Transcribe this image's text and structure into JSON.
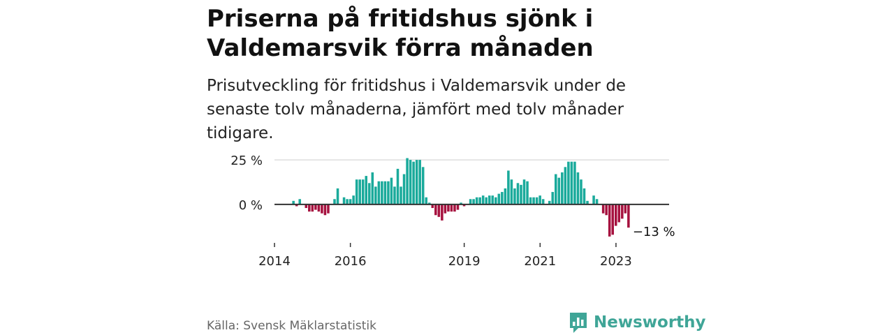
{
  "title": "Priserna på fritidshus sjönk i Valdemarsvik förra månaden",
  "subtitle": "Prisutveckling för fritidshus i Valdemarsvik under de senaste tolv månaderna, jämfört med tolv månader tidigare.",
  "source": "Källa: Svensk Mäklarstatistik",
  "brand": {
    "name": "Newsworthy",
    "icon": "newsworthy-logo-icon"
  },
  "colors": {
    "positive": "#1aaa9b",
    "negative": "#a6123f",
    "grid": "#dddddd",
    "axis": "#333333"
  },
  "chart_data": {
    "type": "bar",
    "ylim": [
      -20,
      27
    ],
    "y_ticks": [
      {
        "value": 25,
        "label": "25 %"
      },
      {
        "value": 0,
        "label": "0 %"
      }
    ],
    "x_ticks": [
      {
        "value": 2014,
        "label": "2014"
      },
      {
        "value": 2016,
        "label": "2016"
      },
      {
        "value": 2019,
        "label": "2019"
      },
      {
        "value": 2021,
        "label": "2021"
      },
      {
        "value": 2023,
        "label": "2023"
      }
    ],
    "xlim": [
      2014,
      2024.4
    ],
    "bar_start": 2014.5,
    "bar_step": 0.0833,
    "annotation": {
      "text": "−13 %"
    },
    "values": [
      2,
      -1,
      3,
      0,
      -2,
      -4,
      -4,
      -3,
      -4,
      -5,
      -6,
      -5,
      0,
      3,
      9,
      0,
      4,
      3,
      3,
      5,
      14,
      14,
      14,
      16,
      12,
      18,
      10,
      13,
      13,
      13,
      13,
      15,
      10,
      20,
      10,
      17,
      26,
      25,
      24,
      25,
      25,
      21,
      4,
      1,
      -2,
      -6,
      -7,
      -9,
      -5,
      -4,
      -4,
      -4,
      -3,
      1,
      -1,
      0,
      3,
      3,
      4,
      4,
      5,
      4,
      5,
      5,
      4,
      6,
      7,
      9,
      19,
      14,
      9,
      12,
      11,
      14,
      13,
      4,
      4,
      4,
      5,
      3,
      0,
      2,
      7,
      17,
      15,
      18,
      21,
      24,
      24,
      24,
      18,
      14,
      9,
      2,
      0,
      5,
      3,
      0,
      -5,
      -6,
      -18,
      -17,
      -12,
      -10,
      -8,
      -5,
      -13
    ]
  }
}
